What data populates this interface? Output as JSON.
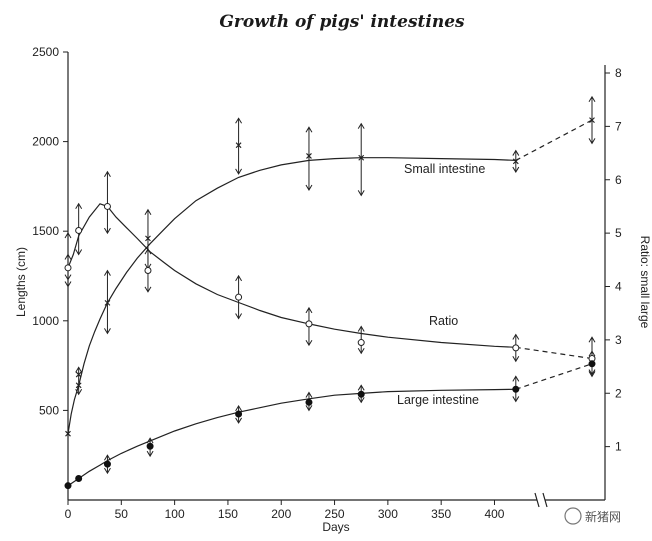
{
  "chart_data": {
    "type": "line",
    "title": "Growth of pigs' intestines",
    "xlabel": "Days",
    "ylabel_left": "Lengths (cm)",
    "ylabel_right": "Ratio: small large",
    "x_ticks": [
      "0",
      "50",
      "100",
      "150",
      "200",
      "250",
      "300",
      "350",
      "400"
    ],
    "y_left_ticks": [
      "500",
      "1000",
      "1500",
      "2000",
      "2500"
    ],
    "y_right_ticks": [
      "1",
      "2",
      "3",
      "4",
      "5",
      "6",
      "7",
      "8"
    ],
    "xlim": [
      0,
      420
    ],
    "ylim_left": [
      0,
      2500
    ],
    "ylim_right": [
      0,
      8
    ],
    "grid": false,
    "axis_break": true,
    "series": [
      {
        "name": "Small intestine",
        "axis": "left",
        "marker": "x",
        "curve": [
          [
            0,
            370
          ],
          [
            3,
            480
          ],
          [
            6,
            560
          ],
          [
            10,
            640
          ],
          [
            15,
            760
          ],
          [
            20,
            860
          ],
          [
            25,
            940
          ],
          [
            30,
            1010
          ],
          [
            37,
            1100
          ],
          [
            45,
            1180
          ],
          [
            55,
            1270
          ],
          [
            65,
            1350
          ],
          [
            77,
            1430
          ],
          [
            90,
            1510
          ],
          [
            100,
            1570
          ],
          [
            120,
            1670
          ],
          [
            140,
            1740
          ],
          [
            160,
            1800
          ],
          [
            180,
            1840
          ],
          [
            200,
            1870
          ],
          [
            226,
            1895
          ],
          [
            250,
            1905
          ],
          [
            275,
            1910
          ],
          [
            300,
            1910
          ],
          [
            350,
            1905
          ],
          [
            400,
            1900
          ],
          [
            420,
            1895
          ]
        ],
        "points": [
          {
            "x": 0,
            "y": 370
          },
          {
            "x": 10,
            "y": 640
          },
          {
            "x": 10,
            "y": 700
          },
          {
            "x": 37,
            "y": 1100
          },
          {
            "x": 75,
            "y": 1460
          },
          {
            "x": 160,
            "y": 1980
          },
          {
            "x": 226,
            "y": 1920
          },
          {
            "x": 275,
            "y": 1910
          },
          {
            "x": 420,
            "y": 1890
          }
        ],
        "error_bars": [
          {
            "x": 0,
            "low": 1230,
            "high": 1490
          },
          {
            "x": 10,
            "low": 590,
            "high": 740
          },
          {
            "x": 37,
            "low": 930,
            "high": 1280
          },
          {
            "x": 75,
            "low": 1290,
            "high": 1620
          },
          {
            "x": 160,
            "low": 1820,
            "high": 2130
          },
          {
            "x": 226,
            "low": 1730,
            "high": 2080
          },
          {
            "x": 275,
            "low": 1700,
            "high": 2100
          },
          {
            "x": 420,
            "low": 1830,
            "high": 1950
          }
        ],
        "extension": {
          "style": "dashed",
          "to_x": 480,
          "to_y": 2120,
          "marker": "x",
          "error_low": 1990,
          "error_high": 2250
        }
      },
      {
        "name": "Ratio",
        "axis": "right",
        "marker": "open-circle",
        "curve": [
          [
            0,
            4.35
          ],
          [
            5,
            4.6
          ],
          [
            10,
            4.95
          ],
          [
            20,
            5.3
          ],
          [
            30,
            5.55
          ],
          [
            37,
            5.5
          ],
          [
            45,
            5.3
          ],
          [
            55,
            5.1
          ],
          [
            65,
            4.9
          ],
          [
            77,
            4.65
          ],
          [
            90,
            4.45
          ],
          [
            100,
            4.3
          ],
          [
            120,
            4.05
          ],
          [
            140,
            3.85
          ],
          [
            160,
            3.7
          ],
          [
            180,
            3.55
          ],
          [
            200,
            3.42
          ],
          [
            226,
            3.3
          ],
          [
            250,
            3.2
          ],
          [
            275,
            3.12
          ],
          [
            300,
            3.05
          ],
          [
            350,
            2.95
          ],
          [
            400,
            2.88
          ],
          [
            420,
            2.86
          ]
        ],
        "points": [
          {
            "x": 0,
            "y": 4.35
          },
          {
            "x": 10,
            "y": 5.05
          },
          {
            "x": 37,
            "y": 5.5
          },
          {
            "x": 75,
            "y": 4.3
          },
          {
            "x": 160,
            "y": 3.8
          },
          {
            "x": 226,
            "y": 3.3
          },
          {
            "x": 275,
            "y": 2.95
          },
          {
            "x": 420,
            "y": 2.85
          }
        ],
        "error_bars": [
          {
            "x": 0,
            "low": 4.0,
            "high": 4.6
          },
          {
            "x": 10,
            "low": 4.6,
            "high": 5.55
          },
          {
            "x": 37,
            "low": 5.0,
            "high": 6.15
          },
          {
            "x": 75,
            "low": 3.9,
            "high": 4.7
          },
          {
            "x": 160,
            "low": 3.4,
            "high": 4.2
          },
          {
            "x": 226,
            "low": 2.9,
            "high": 3.6
          },
          {
            "x": 275,
            "low": 2.75,
            "high": 3.25
          },
          {
            "x": 420,
            "low": 2.6,
            "high": 3.1
          }
        ],
        "extension": {
          "style": "dashed",
          "to_x": 480,
          "to_y": 2.65,
          "marker": "open-circle",
          "error_low": 2.35,
          "error_high": 3.05
        }
      },
      {
        "name": "Large intestine",
        "axis": "left",
        "marker": "filled-circle",
        "curve": [
          [
            0,
            80
          ],
          [
            10,
            120
          ],
          [
            20,
            160
          ],
          [
            30,
            195
          ],
          [
            37,
            220
          ],
          [
            50,
            260
          ],
          [
            65,
            300
          ],
          [
            77,
            330
          ],
          [
            100,
            385
          ],
          [
            120,
            425
          ],
          [
            140,
            460
          ],
          [
            160,
            490
          ],
          [
            180,
            515
          ],
          [
            200,
            540
          ],
          [
            226,
            565
          ],
          [
            250,
            585
          ],
          [
            275,
            595
          ],
          [
            300,
            605
          ],
          [
            350,
            612
          ],
          [
            400,
            616
          ],
          [
            420,
            618
          ]
        ],
        "points": [
          {
            "x": 0,
            "y": 80
          },
          {
            "x": 10,
            "y": 120
          },
          {
            "x": 37,
            "y": 200
          },
          {
            "x": 77,
            "y": 300
          },
          {
            "x": 160,
            "y": 480
          },
          {
            "x": 226,
            "y": 545
          },
          {
            "x": 275,
            "y": 590
          },
          {
            "x": 420,
            "y": 618
          }
        ],
        "error_bars": [
          {
            "x": 37,
            "low": 150,
            "high": 250
          },
          {
            "x": 77,
            "low": 245,
            "high": 345
          },
          {
            "x": 160,
            "low": 430,
            "high": 525
          },
          {
            "x": 226,
            "low": 500,
            "high": 600
          },
          {
            "x": 275,
            "low": 545,
            "high": 640
          },
          {
            "x": 420,
            "low": 550,
            "high": 690
          }
        ],
        "extension": {
          "style": "dashed",
          "to_x": 480,
          "to_y": 760,
          "marker": "filled-circle",
          "error_low": 690,
          "error_high": 830
        }
      }
    ]
  },
  "watermark": {
    "text": "新猪网"
  }
}
